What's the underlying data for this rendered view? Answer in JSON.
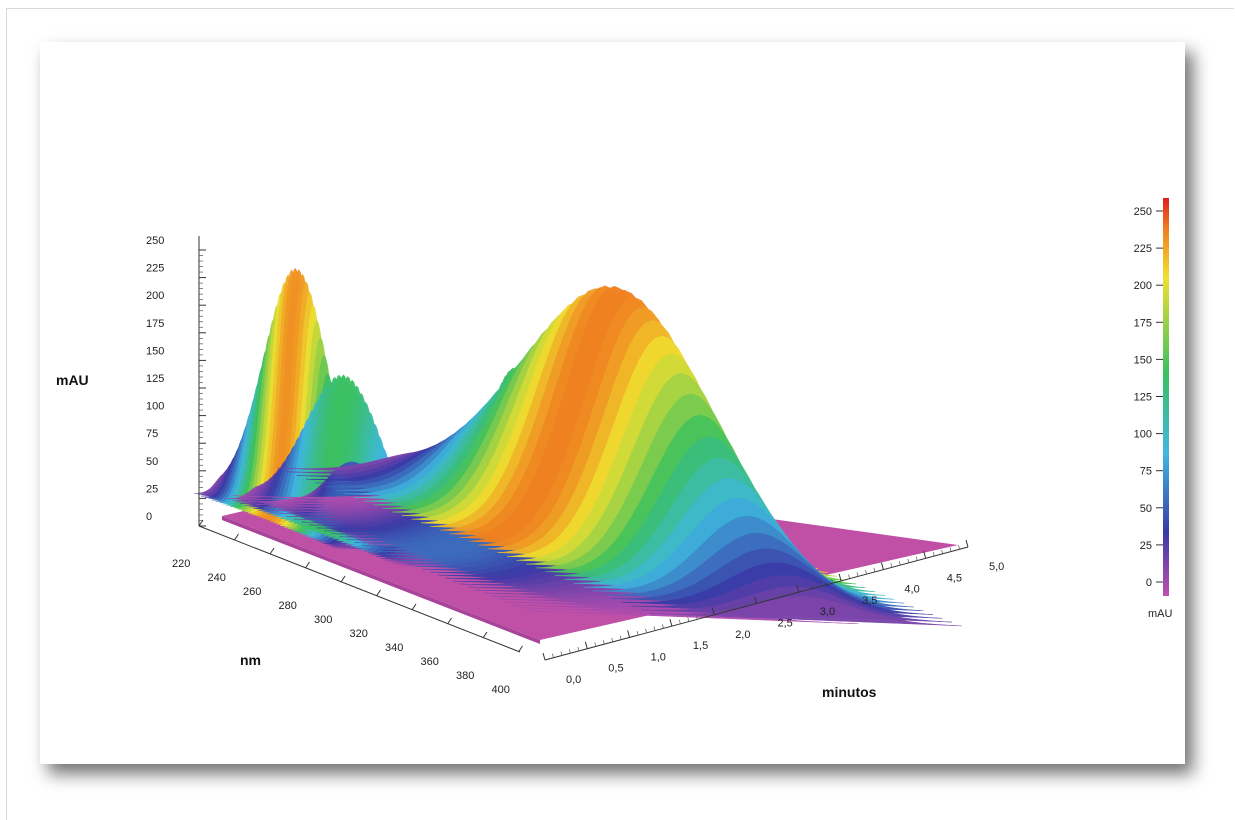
{
  "chart_data": {
    "type": "surface-3d",
    "title": "",
    "xlabel": "minutos",
    "ylabel": "nm",
    "zlabel": "mAU",
    "xlim": [
      0,
      5
    ],
    "ylim": [
      220,
      400
    ],
    "zlim": [
      0,
      250
    ],
    "x_ticks": [
      "0,0",
      "0,5",
      "1,0",
      "1,5",
      "2,0",
      "2,5",
      "3,0",
      "3,5",
      "4,0",
      "4,5",
      "5,0"
    ],
    "y_ticks": [
      "220",
      "240",
      "260",
      "280",
      "300",
      "320",
      "340",
      "360",
      "380",
      "400"
    ],
    "z_ticks": [
      "0",
      "25",
      "50",
      "75",
      "100",
      "125",
      "150",
      "175",
      "200",
      "225",
      "250"
    ],
    "colorbar": {
      "label": "mAU",
      "ticks": [
        "0",
        "25",
        "50",
        "75",
        "100",
        "125",
        "150",
        "175",
        "200",
        "225",
        "250"
      ],
      "colors": [
        "#c050b0",
        "#3a3aa6",
        "#3fb8e0",
        "#3ac060",
        "#f0e030",
        "#f08020",
        "#e02020"
      ]
    },
    "peaks": [
      {
        "time_min": 0.45,
        "wavelength_nm": 225,
        "height_mAU": 225
      },
      {
        "time_min": 0.6,
        "wavelength_nm": 240,
        "height_mAU": 140
      },
      {
        "time_min": 0.85,
        "wavelength_nm": 225,
        "height_mAU": 55
      },
      {
        "time_min": 1.6,
        "wavelength_nm": 270,
        "height_mAU": 60
      },
      {
        "time_min": 1.95,
        "wavelength_nm": 225,
        "height_mAU": 145
      },
      {
        "time_min": 2.4,
        "wavelength_nm": 245,
        "height_mAU": 230
      }
    ]
  }
}
